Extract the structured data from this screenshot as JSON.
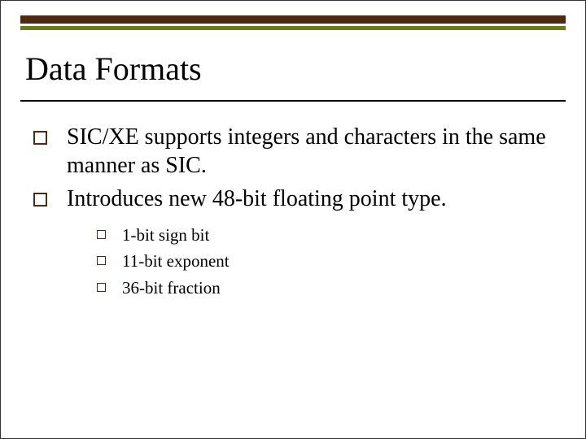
{
  "colors": {
    "brown": "#4d2b12",
    "olive": "#6b7a18",
    "text": "#000000",
    "background": "#ffffff"
  },
  "typography": {
    "title_fontsize_pt": 40,
    "body_fontsize_pt": 28,
    "sub_fontsize_pt": 21,
    "font_family": "Times New Roman"
  },
  "title": "Data Formats",
  "bullets": [
    {
      "text": "SIC/XE supports integers and characters in the same manner as SIC."
    },
    {
      "text": "Introduces new 48-bit floating point type.",
      "sub": [
        "1-bit sign bit",
        "11-bit exponent",
        "36-bit fraction"
      ]
    }
  ]
}
